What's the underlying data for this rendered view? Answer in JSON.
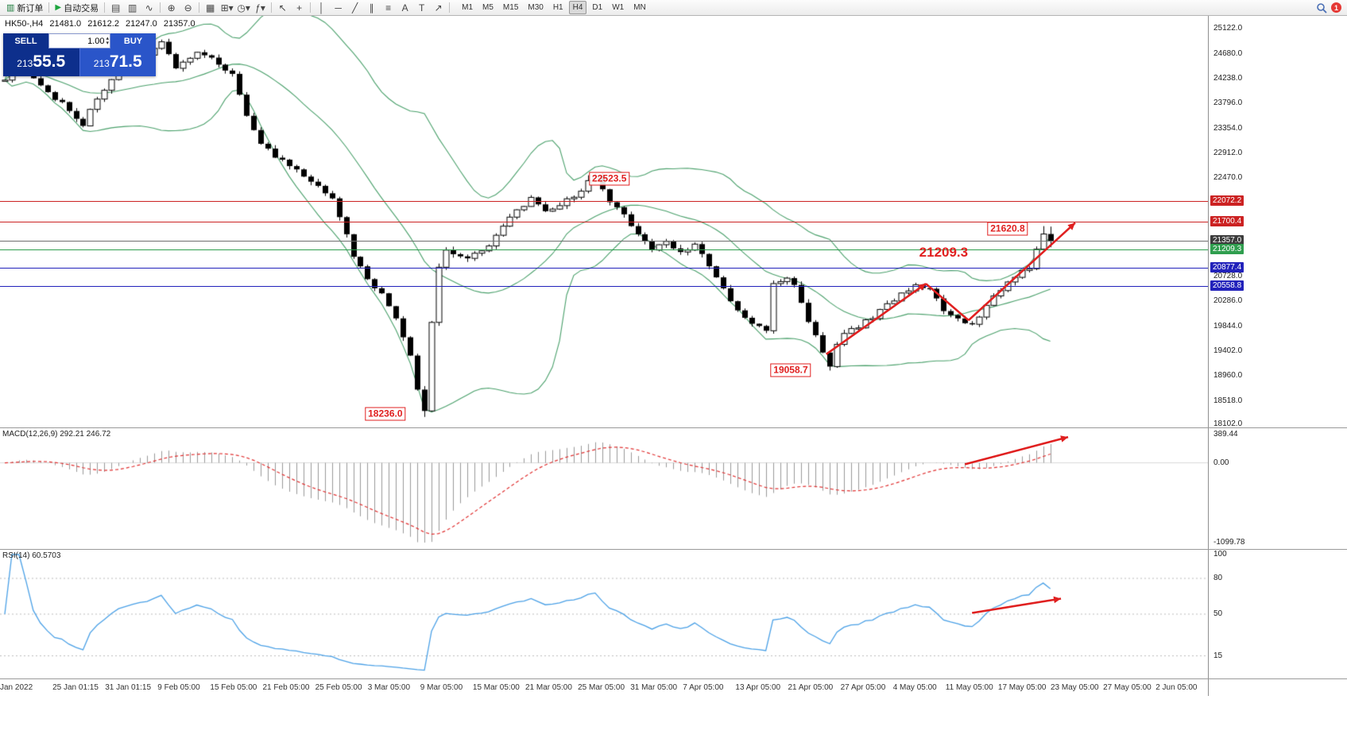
{
  "toolbar": {
    "new_order": {
      "label": "新订单"
    },
    "auto_trading": {
      "label": "自动交易"
    },
    "icon_groups": [
      {
        "icons": [
          {
            "name": "bar-chart-icon",
            "glyph": "▤"
          },
          {
            "name": "candlestick-chart-icon",
            "glyph": "▥"
          },
          {
            "name": "line-chart-icon",
            "glyph": "∿"
          }
        ]
      },
      {
        "icons": [
          {
            "name": "zoom-in-icon",
            "glyph": "⊕"
          },
          {
            "name": "zoom-out-icon",
            "glyph": "⊖"
          }
        ]
      },
      {
        "icons": [
          {
            "name": "tile-windows-icon",
            "glyph": "▦"
          },
          {
            "name": "new-chart-icon",
            "glyph": "⊞▾"
          },
          {
            "name": "period-selector-icon",
            "glyph": "◷▾"
          },
          {
            "name": "indicators-icon",
            "glyph": "ƒ▾"
          }
        ]
      },
      {
        "icons": [
          {
            "name": "cursor-icon",
            "glyph": "↖"
          },
          {
            "name": "crosshair-icon",
            "glyph": "+"
          }
        ]
      },
      {
        "icons": [
          {
            "name": "vertical-line-icon",
            "glyph": "│"
          },
          {
            "name": "horizontal-line-icon",
            "glyph": "─"
          },
          {
            "name": "trendline-icon",
            "glyph": "╱"
          },
          {
            "name": "channel-icon",
            "glyph": "∥"
          },
          {
            "name": "fibonacci-icon",
            "glyph": "≡"
          },
          {
            "name": "text-icon",
            "glyph": "A"
          },
          {
            "name": "label-icon",
            "glyph": "T"
          },
          {
            "name": "arrow-objects-icon",
            "glyph": "↗"
          }
        ]
      }
    ],
    "timeframes": [
      "M1",
      "M5",
      "M15",
      "M30",
      "H1",
      "H4",
      "D1",
      "W1",
      "MN"
    ],
    "active_timeframe": "H4",
    "notification_badge": "1"
  },
  "trade_panel": {
    "sell_label": "SELL",
    "buy_label": "BUY",
    "volume": "1.00",
    "sell_price_prefix": "213",
    "sell_price_main": "55.5",
    "buy_price_prefix": "213",
    "buy_price_main": "71.5"
  },
  "chart": {
    "info": {
      "symbol_period": "HK50-,H4",
      "open": "21481.0",
      "high": "21612.2",
      "low": "21247.0",
      "close": "21357.0"
    },
    "price_axis_labels": [
      "25122.0",
      "24680.0",
      "24238.0",
      "23796.0",
      "23354.0",
      "22912.0",
      "22470.0",
      "20728.0",
      "20286.0",
      "19844.0",
      "19402.0",
      "18960.0",
      "18518.0",
      "18102.0"
    ],
    "level_lines": [
      {
        "label": "22072.2",
        "price": 22072.2,
        "color": "#cc2222"
      },
      {
        "label": "21700.4",
        "price": 21700.4,
        "color": "#cc2222"
      },
      {
        "label": "21357.0",
        "price": 21357.0,
        "color": "#6e6e6e",
        "tag_bg": "#3c3c3c"
      },
      {
        "label": "21209.3",
        "price": 21209.3,
        "color": "#2f9e4e"
      },
      {
        "label": "20877.4",
        "price": 20877.4,
        "color": "#2222bb"
      },
      {
        "label": "20558.8",
        "price": 20558.8,
        "color": "#2222bb"
      }
    ],
    "annotations": [
      {
        "text": "22523.5",
        "bar": 85,
        "price": 22460,
        "boxed": true,
        "large": false
      },
      {
        "text": "21620.8",
        "bar": 141,
        "price": 21570,
        "boxed": true,
        "large": false
      },
      {
        "text": "21209.3",
        "bar": 132,
        "price": 21150,
        "boxed": false,
        "large": true
      },
      {
        "text": "19058.7",
        "bar": 110.5,
        "price": 19060,
        "boxed": true,
        "large": false
      },
      {
        "text": "18236.0",
        "bar": 53.5,
        "price": 18290,
        "boxed": true,
        "large": false
      }
    ],
    "time_axis_labels": [
      "Jan 2022",
      "25 Jan 01:15",
      "31 Jan 01:15",
      "9 Feb 05:00",
      "15 Feb 05:00",
      "21 Feb 05:00",
      "25 Feb 05:00",
      "3 Mar 05:00",
      "9 Mar 05:00",
      "15 Mar 05:00",
      "21 Mar 05:00",
      "25 Mar 05:00",
      "31 Mar 05:00",
      "7 Apr 05:00",
      "13 Apr 05:00",
      "21 Apr 05:00",
      "27 Apr 05:00",
      "4 May 05:00",
      "11 May 05:00",
      "17 May 05:00",
      "23 May 05:00",
      "27 May 05:00",
      "2 Jun 05:00"
    ]
  },
  "macd": {
    "label": "MACD(12,26,9) 292.21 246.72",
    "axis_labels": [
      "389.44",
      "0.00",
      "-1099.78"
    ]
  },
  "rsi": {
    "label": "RSI(14) 60.5703",
    "axis_labels": [
      "100",
      "80",
      "50",
      "15"
    ]
  },
  "chart_data": {
    "type": "candlestick",
    "symbol": "HK50-",
    "timeframe": "H4",
    "title": "HK50-,H4",
    "last_bar": {
      "open": 21481.0,
      "high": 21612.2,
      "low": 21247.0,
      "close": 21357.0
    },
    "price_range": [
      18050,
      25350
    ],
    "bar_count": 148,
    "close_anchors": [
      [
        0,
        24250
      ],
      [
        2,
        24520
      ],
      [
        5,
        24080
      ],
      [
        8,
        23800
      ],
      [
        11,
        23420
      ],
      [
        13,
        23900
      ],
      [
        16,
        24350
      ],
      [
        19,
        24600
      ],
      [
        22,
        24880
      ],
      [
        24,
        24450
      ],
      [
        27,
        24680
      ],
      [
        30,
        24520
      ],
      [
        32,
        24300
      ],
      [
        34,
        23600
      ],
      [
        36,
        23100
      ],
      [
        38,
        22850
      ],
      [
        41,
        22600
      ],
      [
        44,
        22300
      ],
      [
        46,
        22150
      ],
      [
        47,
        21800
      ],
      [
        49,
        21100
      ],
      [
        51,
        20700
      ],
      [
        53,
        20400
      ],
      [
        55,
        20000
      ],
      [
        56,
        19650
      ],
      [
        57,
        19300
      ],
      [
        58,
        18700
      ],
      [
        59,
        18350
      ],
      [
        60,
        19900
      ],
      [
        61,
        20900
      ],
      [
        62,
        21200
      ],
      [
        65,
        21050
      ],
      [
        68,
        21300
      ],
      [
        70,
        21600
      ],
      [
        72,
        21900
      ],
      [
        74,
        22100
      ],
      [
        76,
        21850
      ],
      [
        78,
        22000
      ],
      [
        80,
        22150
      ],
      [
        82,
        22400
      ],
      [
        83,
        22480
      ],
      [
        84,
        22250
      ],
      [
        85,
        22050
      ],
      [
        87,
        21800
      ],
      [
        89,
        21500
      ],
      [
        91,
        21200
      ],
      [
        93,
        21350
      ],
      [
        95,
        21150
      ],
      [
        97,
        21300
      ],
      [
        99,
        20900
      ],
      [
        101,
        20500
      ],
      [
        103,
        20100
      ],
      [
        105,
        19900
      ],
      [
        107,
        19750
      ],
      [
        108,
        20600
      ],
      [
        110,
        20700
      ],
      [
        111,
        20550
      ],
      [
        112,
        20300
      ],
      [
        113,
        19900
      ],
      [
        114,
        19700
      ],
      [
        115,
        19400
      ],
      [
        116,
        19100
      ],
      [
        117,
        19500
      ],
      [
        118,
        19700
      ],
      [
        120,
        19850
      ],
      [
        122,
        20000
      ],
      [
        124,
        20250
      ],
      [
        126,
        20400
      ],
      [
        128,
        20600
      ],
      [
        130,
        20500
      ],
      [
        131,
        20300
      ],
      [
        132,
        20100
      ],
      [
        134,
        19950
      ],
      [
        136,
        19850
      ],
      [
        137,
        20000
      ],
      [
        138,
        20250
      ],
      [
        140,
        20500
      ],
      [
        142,
        20700
      ],
      [
        144,
        20900
      ],
      [
        146,
        21481
      ],
      [
        147,
        21357
      ]
    ],
    "key_extremes": [
      {
        "bar": 59,
        "low": 18236.0
      },
      {
        "bar": 82,
        "high": 22523.5
      },
      {
        "bar": 116,
        "low": 19058.7
      },
      {
        "bar": 146,
        "high": 21620.8
      }
    ],
    "horizontal_levels": [
      22072.2,
      21700.4,
      21357.0,
      21209.3,
      20877.4,
      20558.8
    ],
    "annotated_prices": [
      22523.5,
      21620.8,
      21209.3,
      19058.7,
      18236.0
    ],
    "indicators": {
      "bollinger": {
        "period": 20,
        "deviation": 2
      },
      "macd": {
        "fast": 12,
        "slow": 26,
        "signal": 9,
        "current": 292.21,
        "signal_current": 246.72,
        "scale": [
          -1099.78,
          389.44
        ]
      },
      "rsi": {
        "period": 14,
        "current": 60.5703,
        "scale": [
          0,
          100
        ]
      }
    },
    "trend_arrows": {
      "main": [
        {
          "from": [
            115.5,
            19350
          ],
          "to": [
            129.5,
            20600
          ],
          "head": true
        },
        {
          "from": [
            129.5,
            20600
          ],
          "to": [
            135.5,
            19950
          ],
          "head": false
        },
        {
          "from": [
            135.5,
            19950
          ],
          "to": [
            150.5,
            21680
          ],
          "head": true
        }
      ],
      "macd": [
        {
          "from": [
            135,
            -20
          ],
          "to": [
            149.5,
            355
          ],
          "head": true
        }
      ],
      "rsi": [
        {
          "from": [
            136,
            51
          ],
          "to": [
            148.5,
            63
          ],
          "head": true
        }
      ]
    }
  }
}
